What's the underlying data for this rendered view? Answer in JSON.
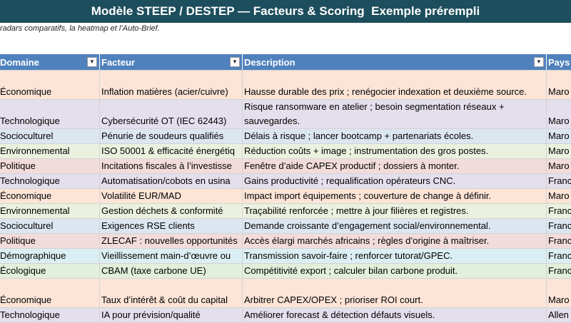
{
  "header": {
    "title": "Modèle STEEP / DESTEP — Facteurs & Scoring  Exemple prérempli",
    "note": "radars comparatifs, la heatmap et l’Auto-Brief."
  },
  "table": {
    "columns": [
      "Domaine",
      "Facteur",
      "Description",
      "Pays"
    ],
    "rows": [
      [
        "Économique",
        "Inflation matières (acier/cuivre)",
        "Hausse durable des prix ; renégocier indexation et deuxième source.",
        "Maro"
      ],
      [
        "Technologique",
        "Cybersécurité OT (IEC 62443)",
        "Risque ransomware en atelier ; besoin segmentation réseaux + sauvegardes.",
        "Maro"
      ],
      [
        "Socioculturel",
        "Pénurie de soudeurs qualifiés",
        "Délais à risque ; lancer bootcamp + partenariats écoles.",
        "Maro"
      ],
      [
        "Environnemental",
        "ISO 50001 & efficacité énergétiq",
        "Réduction coûts + image ; instrumentation des gros postes.",
        "Maro"
      ],
      [
        "Politique",
        "Incitations fiscales à l’investisse",
        "Fenêtre d’aide CAPEX productif ; dossiers à monter.",
        "Maro"
      ],
      [
        "Technologique",
        "Automatisation/cobots en usina",
        "Gains productivité ; requalification opérateurs CNC.",
        "Franc"
      ],
      [
        "Économique",
        "Volatilité EUR/MAD",
        "Impact import équipements ; couverture de change à définir.",
        "Maro"
      ],
      [
        "Environnemental",
        "Gestion déchets & conformité",
        "Traçabilité renforcée ; mettre à jour filières et registres.",
        "Franc"
      ],
      [
        "Socioculturel",
        "Exigences RSE clients",
        "Demande croissante d’engagement social/environnemental.",
        "Franc"
      ],
      [
        "Politique",
        "ZLECAF : nouvelles opportunités",
        "Accès élargi marchés africains ; règles d’origine à maîtriser.",
        "Franc"
      ],
      [
        "Démographique",
        "Vieillissement main-d’œuvre ou",
        "Transmission savoir-faire ; renforcer tutorat/GPEC.",
        "Franc"
      ],
      [
        "Écologique",
        "CBAM (taxe carbone UE)",
        "Compétitivité export ; calculer bilan carbone produit.",
        "Franc"
      ],
      [
        "Économique",
        "Taux d’intérêt & coût du capital",
        "Arbitrer CAPEX/OPEX ; prioriser ROI court.",
        "Maro"
      ],
      [
        "Technologique",
        "IA pour prévision/qualité",
        "Améliorer forecast & détection défauts visuels.",
        "Allen"
      ]
    ]
  }
}
